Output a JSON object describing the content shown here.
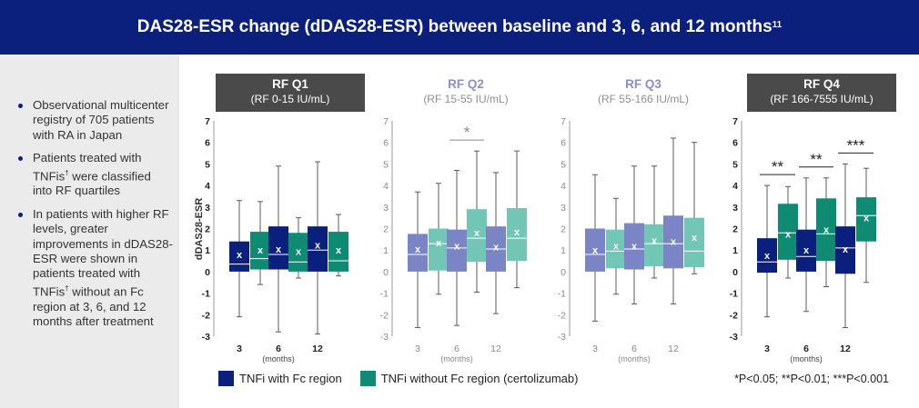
{
  "header": {
    "title": "DAS28-ESR change (dDAS28-ESR) between baseline and 3, 6, and 12 months",
    "ref": "11"
  },
  "sidebar": {
    "bullets": [
      {
        "pre": "Observational multicenter registry of 705 patients with RA in Japan",
        "mark": "",
        "post": ""
      },
      {
        "pre": "Patients treated with TNFis",
        "mark": "†",
        "post": " were classified into RF quartiles"
      },
      {
        "pre": "In patients with higher RF levels, greater improvements in dDAS28-ESR were shown in patients treated with TNFis",
        "mark": "†",
        "post": " without an Fc region at 3, 6, and 12 months after treatment"
      }
    ]
  },
  "legend": {
    "fc": "TNFi with Fc region",
    "nofc": "TNFi without Fc region (certolizumab)",
    "significance": "*P<0.05; **P<0.01; ***P<0.001"
  },
  "colors": {
    "header_bg": "#0b1f7c",
    "fc_strong": "#0b1f7c",
    "nofc_strong": "#0f8a73",
    "fc_muted": "#7b84c4",
    "nofc_muted": "#72c6b6"
  },
  "chart_data": {
    "type": "boxplot",
    "ylabel": "dDAS28-ESR",
    "ylim": [
      -3,
      7
    ],
    "yticks": [
      -3,
      -2,
      -1,
      0,
      1,
      2,
      3,
      4,
      5,
      6,
      7
    ],
    "xlabel": "(months)",
    "x_categories": [
      "3",
      "6",
      "12"
    ],
    "mean_marker": "x",
    "panels": [
      {
        "title": "RF Q1",
        "subtitle": "(RF 0-15 IU/mL)",
        "highlight": true,
        "strong": false,
        "groups": [
          {
            "fc": {
              "min": -2.1,
              "q1": 0,
              "median": 0.35,
              "q3": 1.4,
              "max": 3.3,
              "mean": 0.8
            },
            "nofc": {
              "min": -0.6,
              "q1": 0.1,
              "median": 0.6,
              "q3": 1.85,
              "max": 3.25,
              "mean": 1.0
            },
            "sig": ""
          },
          {
            "fc": {
              "min": -2.8,
              "q1": 0.1,
              "median": 0.8,
              "q3": 2.1,
              "max": 4.9,
              "mean": 1.05
            },
            "nofc": {
              "min": -0.3,
              "q1": 0,
              "median": 0.45,
              "q3": 1.8,
              "max": 2.5,
              "mean": 0.95
            },
            "sig": ""
          },
          {
            "fc": {
              "min": -2.9,
              "q1": 0,
              "median": 1.0,
              "q3": 2.1,
              "max": 5.1,
              "mean": 1.25
            },
            "nofc": {
              "min": -0.2,
              "q1": 0,
              "median": 0.5,
              "q3": 1.85,
              "max": 2.65,
              "mean": 1.0
            },
            "sig": ""
          }
        ]
      },
      {
        "title": "RF Q2",
        "subtitle": "(RF 15-55 IU/mL)",
        "highlight": false,
        "strong": false,
        "groups": [
          {
            "fc": {
              "min": -2.6,
              "q1": 0,
              "median": 0.8,
              "q3": 1.75,
              "max": 3.7,
              "mean": 1.05
            },
            "nofc": {
              "min": -1.05,
              "q1": 0.05,
              "median": 1.3,
              "q3": 2.0,
              "max": 4.1,
              "mean": 1.35
            },
            "sig": ""
          },
          {
            "fc": {
              "min": -2.5,
              "q1": 0,
              "median": 1.1,
              "q3": 1.95,
              "max": 4.7,
              "mean": 1.2
            },
            "nofc": {
              "min": -0.95,
              "q1": 0.45,
              "median": 1.55,
              "q3": 2.9,
              "max": 5.6,
              "mean": 1.8
            },
            "sig": "*"
          },
          {
            "fc": {
              "min": -1.95,
              "q1": 0,
              "median": 1.05,
              "q3": 2.1,
              "max": 4.6,
              "mean": 1.15
            },
            "nofc": {
              "min": -0.75,
              "q1": 0.5,
              "median": 1.55,
              "q3": 2.95,
              "max": 5.6,
              "mean": 1.85
            },
            "sig": ""
          }
        ]
      },
      {
        "title": "RF Q3",
        "subtitle": "(RF 55-166 IU/mL)",
        "highlight": false,
        "strong": false,
        "groups": [
          {
            "fc": {
              "min": -2.3,
              "q1": 0,
              "median": 0.8,
              "q3": 2.0,
              "max": 4.5,
              "mean": 1.0
            },
            "nofc": {
              "min": -1.05,
              "q1": 0.15,
              "median": 0.95,
              "q3": 1.95,
              "max": 3.4,
              "mean": 1.2
            },
            "sig": ""
          },
          {
            "fc": {
              "min": -1.5,
              "q1": 0.1,
              "median": 1.05,
              "q3": 2.25,
              "max": 4.9,
              "mean": 1.2
            },
            "nofc": {
              "min": -0.3,
              "q1": 0.25,
              "median": 1.3,
              "q3": 2.2,
              "max": 4.9,
              "mean": 1.45
            },
            "sig": ""
          },
          {
            "fc": {
              "min": -1.5,
              "q1": 0.15,
              "median": 1.3,
              "q3": 2.6,
              "max": 6.2,
              "mean": 1.4
            },
            "nofc": {
              "min": -0.1,
              "q1": 0.2,
              "median": 0.95,
              "q3": 2.5,
              "max": 6.0,
              "mean": 1.6
            },
            "sig": ""
          }
        ]
      },
      {
        "title": "RF Q4",
        "subtitle": "(RF 166-7555 IU/mL)",
        "highlight": true,
        "strong": true,
        "groups": [
          {
            "fc": {
              "min": -2.1,
              "q1": -0.05,
              "median": 0.45,
              "q3": 1.55,
              "max": 4.0,
              "mean": 0.75
            },
            "nofc": {
              "min": -0.3,
              "q1": 0.55,
              "median": 1.8,
              "q3": 3.15,
              "max": 3.95,
              "mean": 1.75
            },
            "sig": "**"
          },
          {
            "fc": {
              "min": -1.85,
              "q1": 0,
              "median": 0.7,
              "q3": 1.95,
              "max": 4.35,
              "mean": 1.0
            },
            "nofc": {
              "min": -0.7,
              "q1": 0.5,
              "median": 1.75,
              "q3": 3.4,
              "max": 4.35,
              "mean": 1.95
            },
            "sig": "**"
          },
          {
            "fc": {
              "min": -2.6,
              "q1": -0.1,
              "median": 1.1,
              "q3": 2.1,
              "max": 5.0,
              "mean": 1.05
            },
            "nofc": {
              "min": -0.5,
              "q1": 1.4,
              "median": 2.6,
              "q3": 3.45,
              "max": 4.8,
              "mean": 2.5
            },
            "sig": "***"
          }
        ]
      }
    ]
  }
}
